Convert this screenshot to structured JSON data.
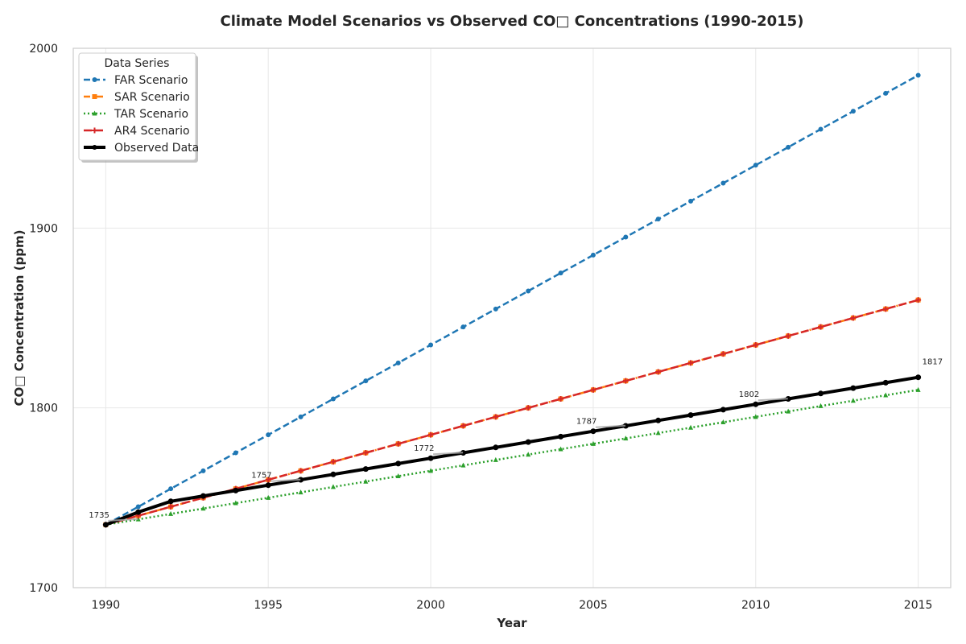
{
  "chart_data": {
    "type": "line",
    "title": "Climate Model Scenarios vs Observed CO□ Concentrations (1990-2015)",
    "xlabel": "Year",
    "ylabel": "CO□ Concentration (ppm)",
    "xlim": [
      1989,
      2016
    ],
    "ylim": [
      1700,
      2000
    ],
    "xticks": [
      1990,
      1995,
      2000,
      2005,
      2010,
      2015
    ],
    "yticks": [
      1700,
      1800,
      1900,
      2000
    ],
    "grid": true,
    "legend": {
      "title": "Data Series",
      "position": "top-left"
    },
    "x": [
      1990,
      1991,
      1992,
      1993,
      1994,
      1995,
      1996,
      1997,
      1998,
      1999,
      2000,
      2001,
      2002,
      2003,
      2004,
      2005,
      2006,
      2007,
      2008,
      2009,
      2010,
      2011,
      2012,
      2013,
      2014,
      2015
    ],
    "series": [
      {
        "name": "FAR Scenario",
        "color": "#1f77b4",
        "dash": "8,4",
        "width": 2.5,
        "marker": "circle",
        "values": [
          1735,
          1745,
          1755,
          1765,
          1775,
          1785,
          1795,
          1805,
          1815,
          1825,
          1835,
          1845,
          1855,
          1865,
          1875,
          1885,
          1895,
          1905,
          1915,
          1925,
          1935,
          1945,
          1955,
          1965,
          1975,
          1985
        ]
      },
      {
        "name": "SAR Scenario",
        "color": "#ff7f0e",
        "dash": "8,3,2,3",
        "width": 2.5,
        "marker": "square",
        "values": [
          1735,
          1740,
          1745,
          1750,
          1755,
          1760,
          1765,
          1770,
          1775,
          1780,
          1785,
          1790,
          1795,
          1800,
          1805,
          1810,
          1815,
          1820,
          1825,
          1830,
          1835,
          1840,
          1845,
          1850,
          1855,
          1860
        ]
      },
      {
        "name": "TAR Scenario",
        "color": "#2ca02c",
        "dash": "2,3",
        "width": 2.5,
        "marker": "triangle",
        "values": [
          1735,
          1738,
          1741,
          1744,
          1747,
          1750,
          1753,
          1756,
          1759,
          1762,
          1765,
          1768,
          1771,
          1774,
          1777,
          1780,
          1783,
          1786,
          1789,
          1792,
          1795,
          1798,
          1801,
          1804,
          1807,
          1810
        ]
      },
      {
        "name": "AR4 Scenario",
        "color": "#d62728",
        "dash": "10,4",
        "width": 2.5,
        "marker": "plus",
        "values": [
          1735,
          1740,
          1745,
          1750,
          1755,
          1760,
          1765,
          1770,
          1775,
          1780,
          1785,
          1790,
          1795,
          1800,
          1805,
          1810,
          1815,
          1820,
          1825,
          1830,
          1835,
          1840,
          1845,
          1850,
          1855,
          1860
        ]
      },
      {
        "name": "Observed Data",
        "color": "#000000",
        "dash": "",
        "width": 4,
        "marker": "circle",
        "values": [
          1735,
          1742,
          1748,
          1751,
          1754,
          1757,
          1760,
          1763,
          1766,
          1769,
          1772,
          1775,
          1778,
          1781,
          1784,
          1787,
          1790,
          1793,
          1796,
          1799,
          1802,
          1805,
          1808,
          1811,
          1814,
          1817
        ]
      }
    ],
    "annotations": [
      {
        "x": 1990,
        "y": 1735,
        "label": "1735"
      },
      {
        "x": 1995,
        "y": 1757,
        "label": "1757"
      },
      {
        "x": 2000,
        "y": 1772,
        "label": "1772"
      },
      {
        "x": 2005,
        "y": 1787,
        "label": "1787"
      },
      {
        "x": 2010,
        "y": 1802,
        "label": "1802"
      },
      {
        "x": 2015,
        "y": 1817,
        "label": "1817"
      }
    ]
  }
}
